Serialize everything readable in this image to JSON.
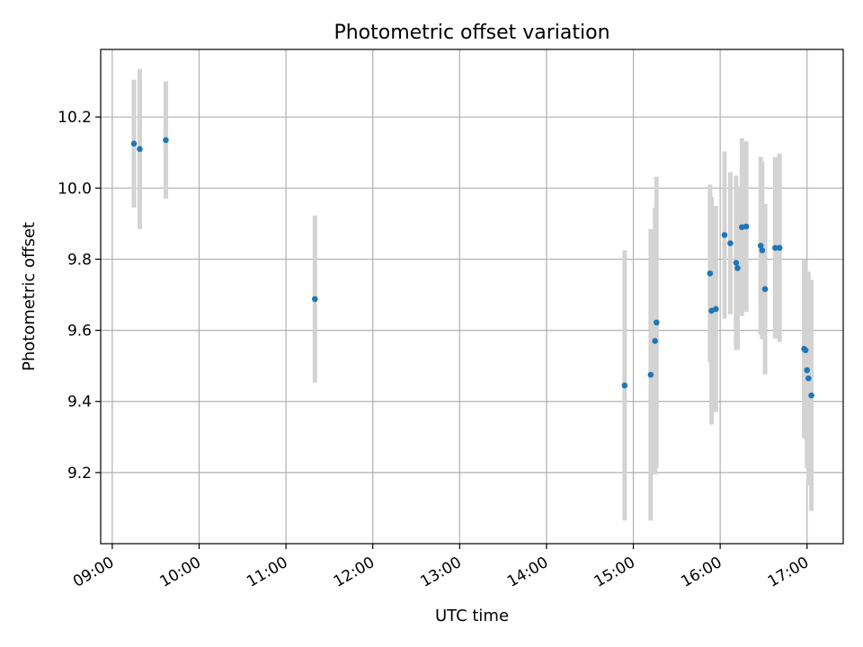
{
  "chart_data": {
    "type": "scatter",
    "title": "Photometric offset variation",
    "xlabel": "UTC time",
    "ylabel": "Photometric offset",
    "x_tick_labels": [
      "09:00",
      "10:00",
      "11:00",
      "12:00",
      "13:00",
      "14:00",
      "15:00",
      "16:00",
      "17:00"
    ],
    "y_tick_labels": [
      "9.2",
      "9.4",
      "9.6",
      "9.8",
      "10.0",
      "10.2"
    ],
    "xlim": [
      "08:52",
      "17:25"
    ],
    "ylim": [
      9.0,
      10.39
    ],
    "grid": true,
    "colors": {
      "points": "#1f77b4",
      "error_bars": "#d3d3d3",
      "grid": "#b0b0b0"
    },
    "series": [
      {
        "points": [
          {
            "x": "09:15",
            "y": 10.125,
            "err": 0.18
          },
          {
            "x": "09:19",
            "y": 10.11,
            "err": 0.225
          },
          {
            "x": "09:37",
            "y": 10.135,
            "err": 0.165
          },
          {
            "x": "11:20",
            "y": 9.688,
            "err": 0.235
          },
          {
            "x": "14:54",
            "y": 9.445,
            "err": 0.38
          },
          {
            "x": "15:12",
            "y": 9.475,
            "err": 0.41
          },
          {
            "x": "15:15",
            "y": 9.57,
            "err": 0.375
          },
          {
            "x": "15:16",
            "y": 9.622,
            "err": 0.41
          },
          {
            "x": "15:53",
            "y": 9.76,
            "err": 0.25
          },
          {
            "x": "15:54",
            "y": 9.655,
            "err": 0.32
          },
          {
            "x": "15:57",
            "y": 9.66,
            "err": 0.29
          },
          {
            "x": "16:03",
            "y": 9.868,
            "err": 0.235
          },
          {
            "x": "16:07",
            "y": 9.845,
            "err": 0.2
          },
          {
            "x": "16:11",
            "y": 9.79,
            "err": 0.245
          },
          {
            "x": "16:12",
            "y": 9.775,
            "err": 0.23
          },
          {
            "x": "16:15",
            "y": 9.89,
            "err": 0.25
          },
          {
            "x": "16:18",
            "y": 9.892,
            "err": 0.24
          },
          {
            "x": "16:28",
            "y": 9.838,
            "err": 0.25
          },
          {
            "x": "16:29",
            "y": 9.825,
            "err": 0.25
          },
          {
            "x": "16:31",
            "y": 9.716,
            "err": 0.24
          },
          {
            "x": "16:38",
            "y": 9.832,
            "err": 0.255
          },
          {
            "x": "16:41",
            "y": 9.832,
            "err": 0.265
          },
          {
            "x": "16:58",
            "y": 9.548,
            "err": 0.25
          },
          {
            "x": "16:59",
            "y": 9.544,
            "err": 0.25
          },
          {
            "x": "17:00",
            "y": 9.488,
            "err": 0.275
          },
          {
            "x": "17:01",
            "y": 9.465,
            "err": 0.3
          },
          {
            "x": "17:03",
            "y": 9.417,
            "err": 0.325
          }
        ]
      }
    ]
  }
}
